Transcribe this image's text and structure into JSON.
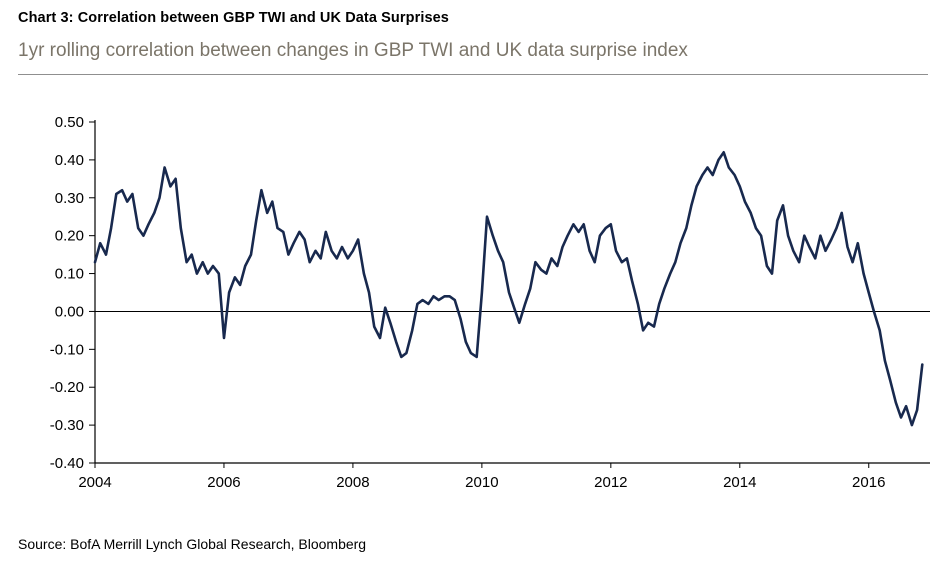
{
  "header": {
    "title": "Chart 3: Correlation between GBP TWI and UK Data Surprises",
    "subtitle": "1yr rolling correlation between changes in GBP TWI and UK data surprise index"
  },
  "footer": {
    "source": "Source: BofA Merrill Lynch Global Research, Bloomberg"
  },
  "colors": {
    "line": "#18294e",
    "axis": "#000000",
    "subtitle_text": "#7b7569",
    "divider": "#8f8f8f"
  },
  "chart_data": {
    "type": "line",
    "title": "Chart 3: Correlation between GBP TWI and UK Data Surprises",
    "subtitle": "1yr rolling correlation between changes in GBP TWI and UK data surprise index",
    "xlabel": "",
    "ylabel": "",
    "xlim": [
      2004,
      2016.95
    ],
    "ylim": [
      -0.4,
      0.5
    ],
    "x_ticks": [
      2004,
      2006,
      2008,
      2010,
      2012,
      2014,
      2016
    ],
    "y_ticks": [
      0.5,
      0.4,
      0.3,
      0.2,
      0.1,
      0.0,
      -0.1,
      -0.2,
      -0.3,
      -0.4
    ],
    "zero_line": 0,
    "grid": false,
    "legend_position": "none",
    "series": [
      {
        "name": "1yr rolling correlation (changes in GBP TWI vs UK data surprise index)",
        "color": "#18294e",
        "points": [
          [
            2004.0,
            0.13
          ],
          [
            2004.08,
            0.18
          ],
          [
            2004.17,
            0.15
          ],
          [
            2004.25,
            0.22
          ],
          [
            2004.33,
            0.31
          ],
          [
            2004.42,
            0.32
          ],
          [
            2004.5,
            0.29
          ],
          [
            2004.58,
            0.31
          ],
          [
            2004.67,
            0.22
          ],
          [
            2004.75,
            0.2
          ],
          [
            2004.83,
            0.23
          ],
          [
            2004.92,
            0.26
          ],
          [
            2005.0,
            0.3
          ],
          [
            2005.08,
            0.38
          ],
          [
            2005.17,
            0.33
          ],
          [
            2005.25,
            0.35
          ],
          [
            2005.33,
            0.22
          ],
          [
            2005.42,
            0.13
          ],
          [
            2005.5,
            0.15
          ],
          [
            2005.58,
            0.1
          ],
          [
            2005.67,
            0.13
          ],
          [
            2005.75,
            0.1
          ],
          [
            2005.83,
            0.12
          ],
          [
            2005.92,
            0.1
          ],
          [
            2006.0,
            -0.07
          ],
          [
            2006.08,
            0.05
          ],
          [
            2006.17,
            0.09
          ],
          [
            2006.25,
            0.07
          ],
          [
            2006.33,
            0.12
          ],
          [
            2006.42,
            0.15
          ],
          [
            2006.5,
            0.24
          ],
          [
            2006.58,
            0.32
          ],
          [
            2006.67,
            0.26
          ],
          [
            2006.75,
            0.29
          ],
          [
            2006.83,
            0.22
          ],
          [
            2006.92,
            0.21
          ],
          [
            2007.0,
            0.15
          ],
          [
            2007.08,
            0.18
          ],
          [
            2007.17,
            0.21
          ],
          [
            2007.25,
            0.19
          ],
          [
            2007.33,
            0.13
          ],
          [
            2007.42,
            0.16
          ],
          [
            2007.5,
            0.14
          ],
          [
            2007.58,
            0.21
          ],
          [
            2007.67,
            0.16
          ],
          [
            2007.75,
            0.14
          ],
          [
            2007.83,
            0.17
          ],
          [
            2007.92,
            0.14
          ],
          [
            2008.0,
            0.16
          ],
          [
            2008.08,
            0.19
          ],
          [
            2008.17,
            0.1
          ],
          [
            2008.25,
            0.05
          ],
          [
            2008.33,
            -0.04
          ],
          [
            2008.42,
            -0.07
          ],
          [
            2008.5,
            0.01
          ],
          [
            2008.58,
            -0.03
          ],
          [
            2008.67,
            -0.08
          ],
          [
            2008.75,
            -0.12
          ],
          [
            2008.83,
            -0.11
          ],
          [
            2008.92,
            -0.05
          ],
          [
            2009.0,
            0.02
          ],
          [
            2009.08,
            0.03
          ],
          [
            2009.17,
            0.02
          ],
          [
            2009.25,
            0.04
          ],
          [
            2009.33,
            0.03
          ],
          [
            2009.42,
            0.04
          ],
          [
            2009.5,
            0.04
          ],
          [
            2009.58,
            0.03
          ],
          [
            2009.67,
            -0.02
          ],
          [
            2009.75,
            -0.08
          ],
          [
            2009.83,
            -0.11
          ],
          [
            2009.92,
            -0.12
          ],
          [
            2010.0,
            0.05
          ],
          [
            2010.08,
            0.25
          ],
          [
            2010.17,
            0.2
          ],
          [
            2010.25,
            0.16
          ],
          [
            2010.33,
            0.13
          ],
          [
            2010.42,
            0.05
          ],
          [
            2010.5,
            0.01
          ],
          [
            2010.58,
            -0.03
          ],
          [
            2010.67,
            0.02
          ],
          [
            2010.75,
            0.06
          ],
          [
            2010.83,
            0.13
          ],
          [
            2010.92,
            0.11
          ],
          [
            2011.0,
            0.1
          ],
          [
            2011.08,
            0.14
          ],
          [
            2011.17,
            0.12
          ],
          [
            2011.25,
            0.17
          ],
          [
            2011.33,
            0.2
          ],
          [
            2011.42,
            0.23
          ],
          [
            2011.5,
            0.21
          ],
          [
            2011.58,
            0.23
          ],
          [
            2011.67,
            0.16
          ],
          [
            2011.75,
            0.13
          ],
          [
            2011.83,
            0.2
          ],
          [
            2011.92,
            0.22
          ],
          [
            2012.0,
            0.23
          ],
          [
            2012.08,
            0.16
          ],
          [
            2012.17,
            0.13
          ],
          [
            2012.25,
            0.14
          ],
          [
            2012.33,
            0.08
          ],
          [
            2012.42,
            0.02
          ],
          [
            2012.5,
            -0.05
          ],
          [
            2012.58,
            -0.03
          ],
          [
            2012.67,
            -0.04
          ],
          [
            2012.75,
            0.02
          ],
          [
            2012.83,
            0.06
          ],
          [
            2012.92,
            0.1
          ],
          [
            2013.0,
            0.13
          ],
          [
            2013.08,
            0.18
          ],
          [
            2013.17,
            0.22
          ],
          [
            2013.25,
            0.28
          ],
          [
            2013.33,
            0.33
          ],
          [
            2013.42,
            0.36
          ],
          [
            2013.5,
            0.38
          ],
          [
            2013.58,
            0.36
          ],
          [
            2013.67,
            0.4
          ],
          [
            2013.75,
            0.42
          ],
          [
            2013.83,
            0.38
          ],
          [
            2013.92,
            0.36
          ],
          [
            2014.0,
            0.33
          ],
          [
            2014.08,
            0.29
          ],
          [
            2014.17,
            0.26
          ],
          [
            2014.25,
            0.22
          ],
          [
            2014.33,
            0.2
          ],
          [
            2014.42,
            0.12
          ],
          [
            2014.5,
            0.1
          ],
          [
            2014.58,
            0.24
          ],
          [
            2014.67,
            0.28
          ],
          [
            2014.75,
            0.2
          ],
          [
            2014.83,
            0.16
          ],
          [
            2014.92,
            0.13
          ],
          [
            2015.0,
            0.2
          ],
          [
            2015.08,
            0.17
          ],
          [
            2015.17,
            0.14
          ],
          [
            2015.25,
            0.2
          ],
          [
            2015.33,
            0.16
          ],
          [
            2015.42,
            0.19
          ],
          [
            2015.5,
            0.22
          ],
          [
            2015.58,
            0.26
          ],
          [
            2015.67,
            0.17
          ],
          [
            2015.75,
            0.13
          ],
          [
            2015.83,
            0.18
          ],
          [
            2015.92,
            0.1
          ],
          [
            2016.0,
            0.05
          ],
          [
            2016.08,
            0.0
          ],
          [
            2016.17,
            -0.05
          ],
          [
            2016.25,
            -0.13
          ],
          [
            2016.33,
            -0.18
          ],
          [
            2016.42,
            -0.24
          ],
          [
            2016.5,
            -0.28
          ],
          [
            2016.58,
            -0.25
          ],
          [
            2016.67,
            -0.3
          ],
          [
            2016.75,
            -0.26
          ],
          [
            2016.83,
            -0.14
          ]
        ]
      }
    ]
  }
}
